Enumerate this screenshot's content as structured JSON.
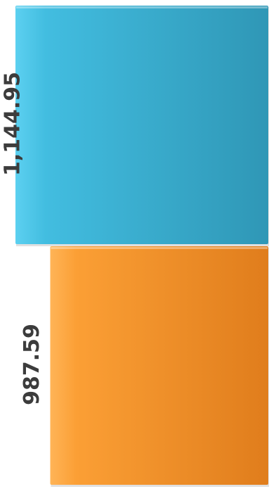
{
  "chart_data": {
    "type": "bar",
    "orientation": "horizontal",
    "categories": [
      "",
      ""
    ],
    "values": [
      1144.95,
      987.59
    ],
    "data_labels": [
      "1,144.95",
      "987.59"
    ],
    "colors": [
      "#3bb4d8",
      "#f79a2e"
    ],
    "xlim": [
      0,
      1144.95
    ],
    "title": "",
    "xlabel": "",
    "ylabel": "",
    "grid": false,
    "legend": "none"
  }
}
